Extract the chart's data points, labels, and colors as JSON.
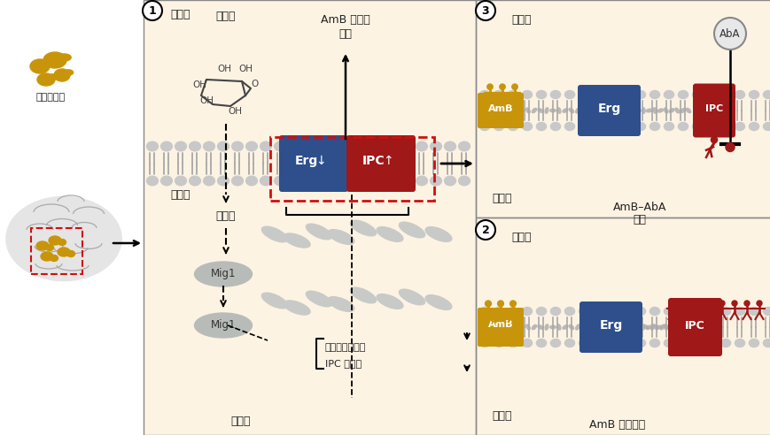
{
  "bg_color": "#ffffff",
  "panel_bg": "#fdf3e3",
  "white_bg": "#ffffff",
  "membrane_head": "#c8c8c8",
  "membrane_tail": "#a8a8a8",
  "erg_color": "#2e4f8c",
  "ipc_color_dark": "#8b1515",
  "ipc_color": "#a01818",
  "amb_color": "#c8950a",
  "mig1_color": "#b8bcb8",
  "nucleus_border": "#909090",
  "red_dashed": "#cc1111",
  "arrow_color": "#222222",
  "text_color": "#222222",
  "label_outside": "细胞外",
  "label_inside": "细胞内",
  "label_nucleus": "细胞核",
  "label_glucose": "葡萄糖",
  "label_amb_kill1": "AmB 的杀伤",
  "label_amb_kill2": "效果",
  "label_erg_synth": "麦角甬醇的合成",
  "label_ipc_synth": "IPC 的合成",
  "label_panel2": "AmB 耐受细胞",
  "label_panel3a": "AmB–AbA",
  "label_panel3b": "组合",
  "label_aba": "AbA",
  "circle1": "1",
  "circle2": "2",
  "circle3": "3",
  "new_crypto": "新型隐球菌"
}
